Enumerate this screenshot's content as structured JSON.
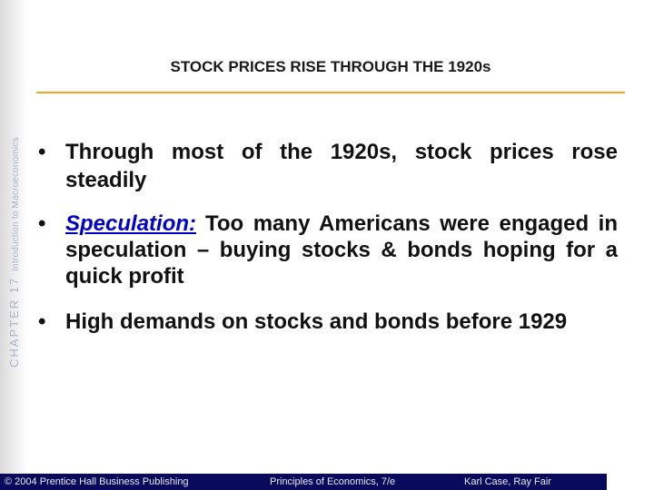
{
  "sidebar": {
    "chapter": "CHAPTER 17",
    "subject": "Introduction to Macroeconomics"
  },
  "title": "STOCK PRICES RISE THROUGH THE 1920s",
  "bullets": [
    {
      "text": "Through most of the 1920s, stock prices rose steadily"
    },
    {
      "term": "Speculation:",
      "text": "Too many Americans were engaged in speculation – buying stocks & bonds hoping for a quick profit"
    },
    {
      "text": "High demands on stocks and bonds before 1929"
    }
  ],
  "footer": {
    "copyright": "© 2004 Prentice Hall Business Publishing",
    "book": "Principles of Economics, 7/e",
    "authors": "Karl Case, Ray Fair"
  }
}
